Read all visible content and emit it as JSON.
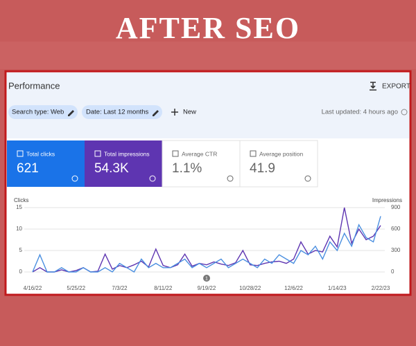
{
  "header": {
    "banner": "AFTER SEO"
  },
  "panel": {
    "title": "Performance",
    "export": "EXPORT",
    "filters": [
      "Search type: Web",
      "Date: Last 12 months"
    ],
    "new_button": "New",
    "last_updated": "Last updated: 4 hours ago",
    "cards": [
      {
        "label": "Total clicks",
        "value": "621"
      },
      {
        "label": "Total impressions",
        "value": "54.3K"
      },
      {
        "label": "Average CTR",
        "value": "1.1%"
      },
      {
        "label": "Average position",
        "value": "41.9"
      }
    ]
  },
  "chart_data": {
    "type": "line",
    "categories": [
      "4/16/22",
      null,
      null,
      null,
      null,
      null,
      "5/25/22",
      null,
      null,
      null,
      null,
      null,
      "7/3/22",
      null,
      null,
      null,
      null,
      null,
      "8/11/22",
      null,
      null,
      null,
      null,
      null,
      "9/19/22",
      null,
      null,
      null,
      null,
      null,
      "10/28/22",
      null,
      null,
      null,
      null,
      null,
      "12/6/22",
      null,
      null,
      null,
      null,
      null,
      "1/14/23",
      null,
      null,
      null,
      null,
      null,
      "2/22/23"
    ],
    "series": [
      {
        "name": "Clicks",
        "color": "#4a8fe0",
        "values": [
          0,
          4,
          0,
          0,
          1,
          0,
          0,
          1,
          0,
          0,
          1,
          0,
          2,
          1,
          0,
          3,
          1,
          2,
          1,
          1,
          2,
          3,
          1,
          2,
          1,
          2,
          3,
          1,
          2,
          3,
          2,
          1,
          3,
          2,
          4,
          3,
          2,
          5,
          4,
          6,
          3,
          7,
          5,
          9,
          6,
          11,
          8,
          7,
          13
        ]
      },
      {
        "name": "Impressions",
        "color": "#5e35b1",
        "axis": "y2",
        "values": [
          0,
          60,
          0,
          0,
          30,
          0,
          20,
          60,
          0,
          10,
          250,
          40,
          90,
          60,
          100,
          150,
          70,
          320,
          90,
          60,
          100,
          250,
          80,
          120,
          100,
          140,
          110,
          90,
          130,
          300,
          100,
          90,
          120,
          140,
          150,
          120,
          180,
          420,
          250,
          300,
          280,
          500,
          350,
          900,
          400,
          600,
          450,
          500,
          650
        ]
      }
    ],
    "ylim": [
      0,
      15
    ],
    "yticks": [
      0,
      5,
      10,
      15
    ],
    "y2lim": [
      0,
      900
    ],
    "y2ticks": [
      0,
      300,
      600,
      900
    ],
    "grid": true,
    "annotation": "1"
  }
}
